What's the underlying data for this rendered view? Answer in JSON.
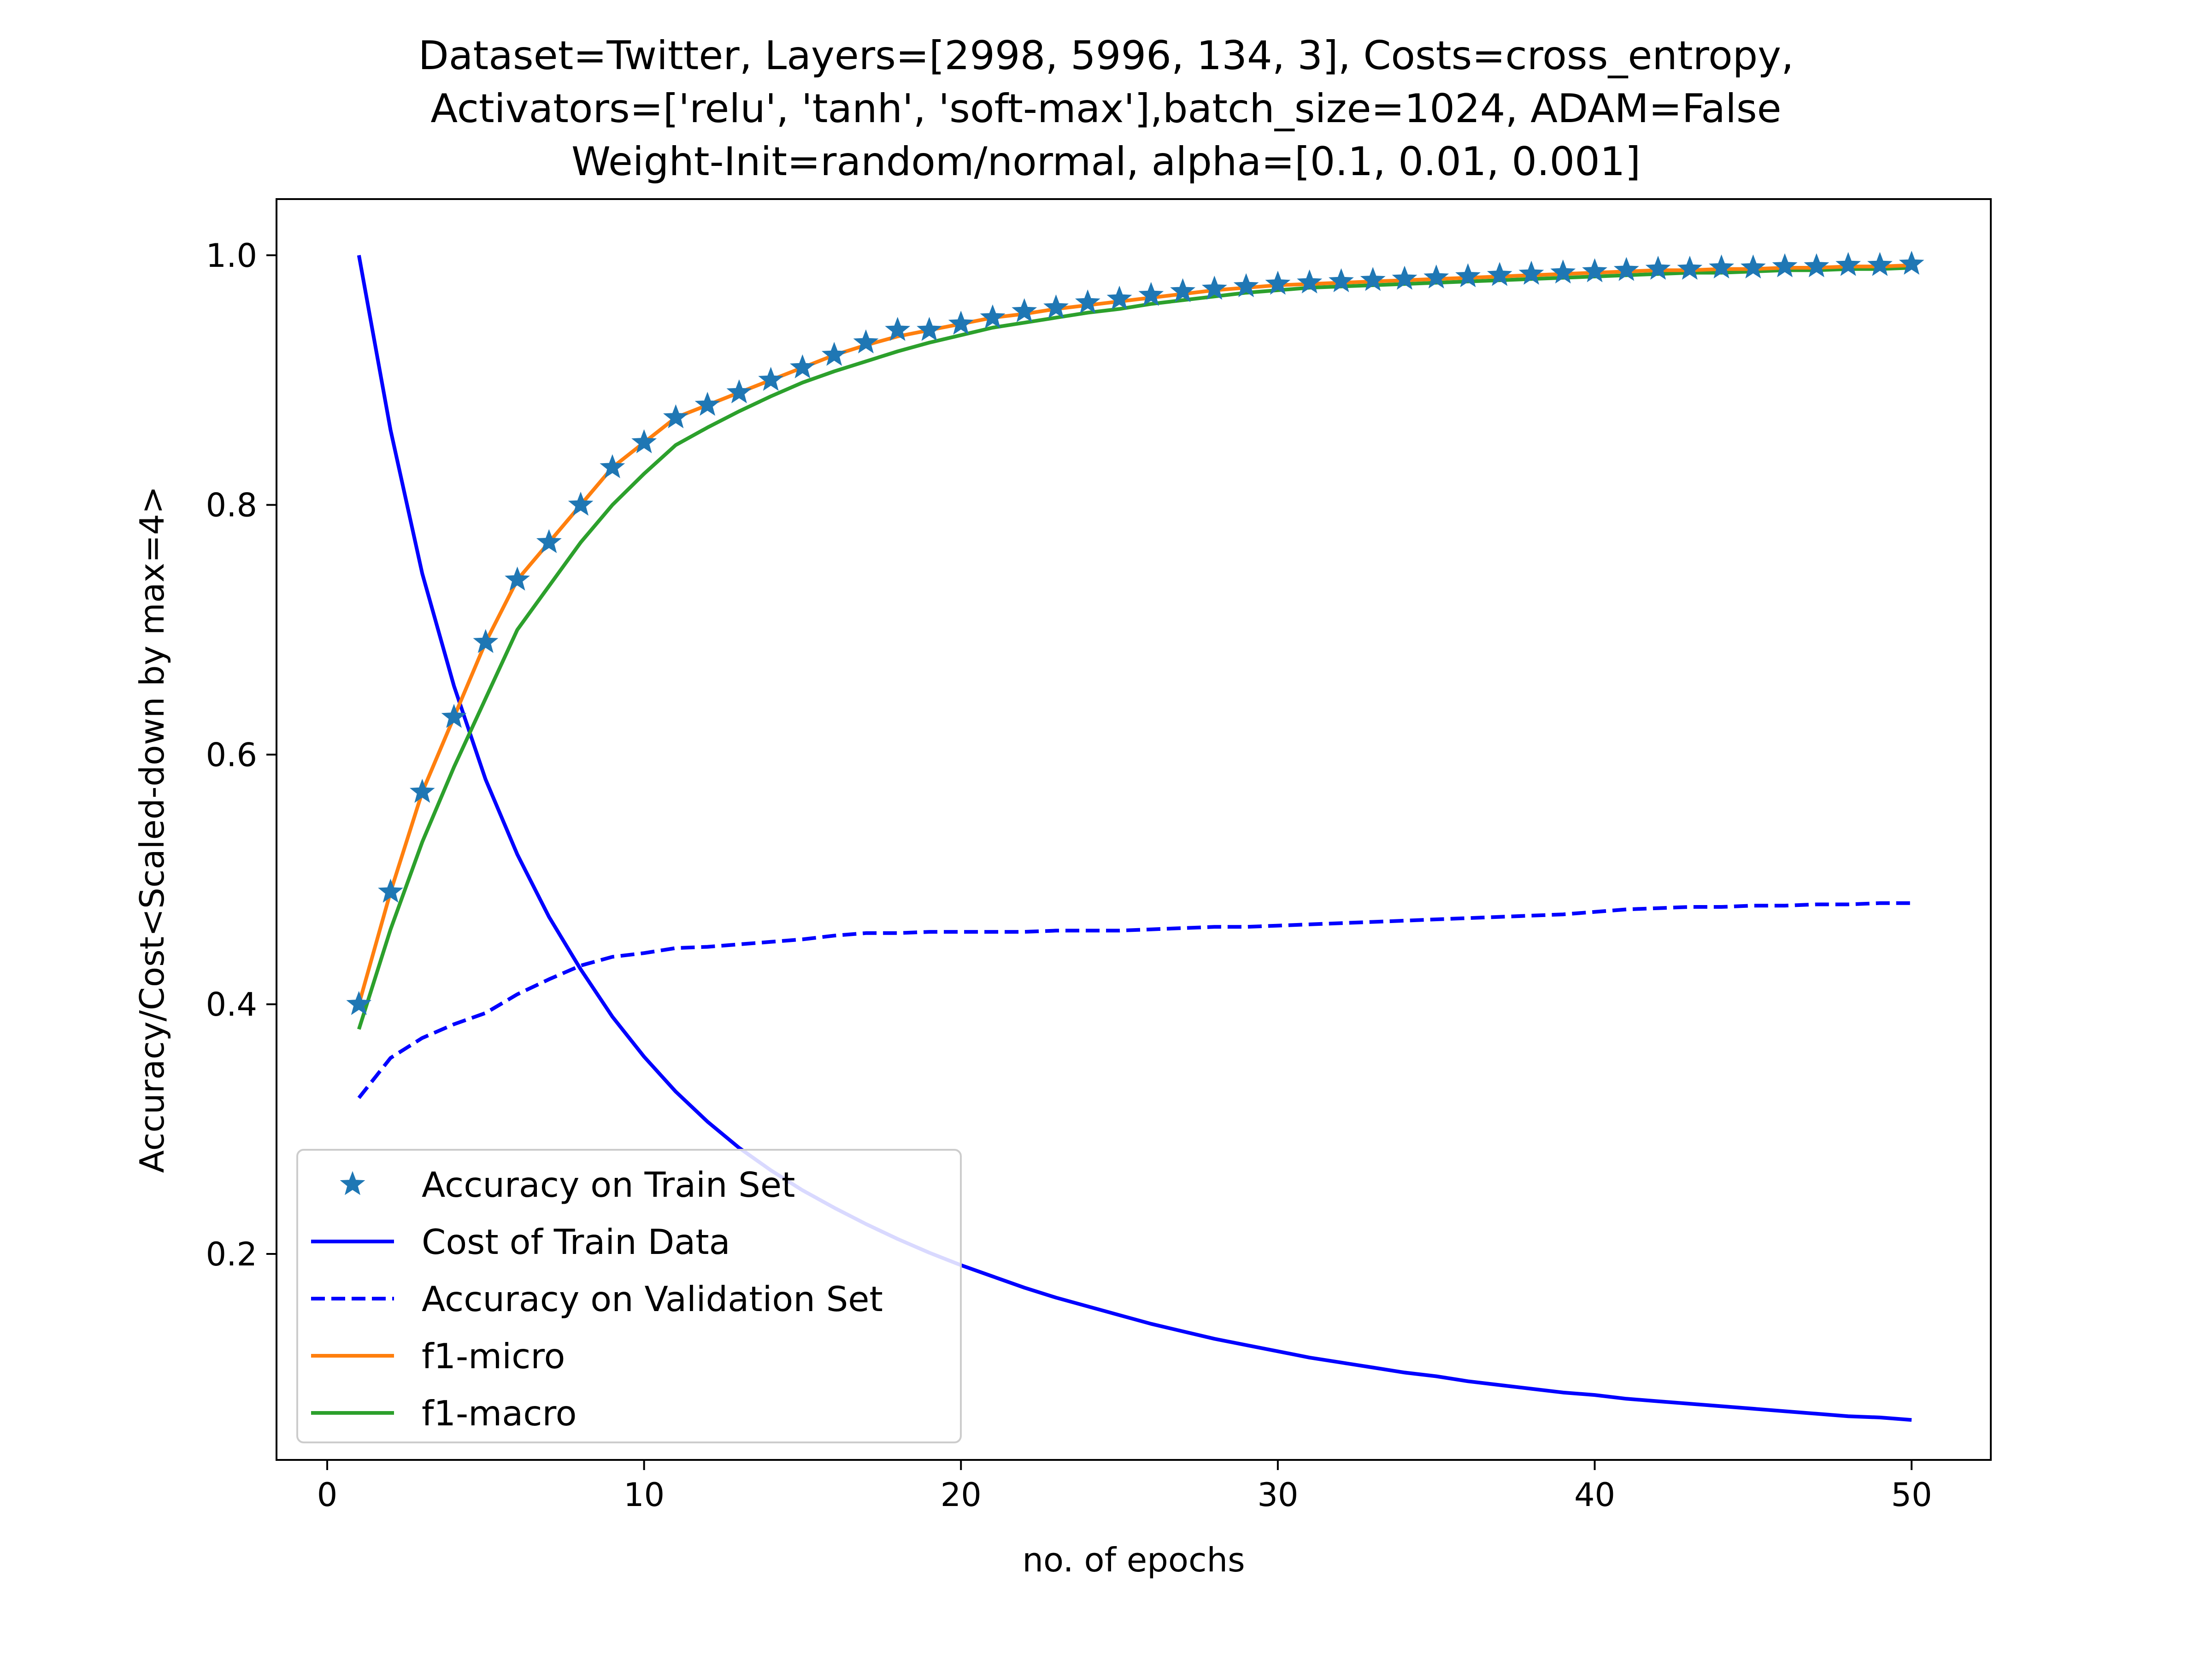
{
  "chart_data": {
    "type": "line",
    "title": [
      "Dataset=Twitter, Layers=[2998, 5996, 134, 3], Costs=cross_entropy,",
      "Activators=['relu', 'tanh', 'soft-max'],batch_size=1024, ADAM=False",
      "Weight-Init=random/normal, alpha=[0.1, 0.01, 0.001]"
    ],
    "xlabel": "no. of epochs",
    "ylabel": "Accuracy/Cost<Scaled-down by max=4>",
    "xlim": [
      -1.6,
      52.5
    ],
    "ylim": [
      0.035,
      1.045
    ],
    "xticks": [
      0,
      10,
      20,
      30,
      40,
      50
    ],
    "xtick_labels": [
      "0",
      "10",
      "20",
      "30",
      "40",
      "50"
    ],
    "yticks": [
      0.2,
      0.4,
      0.6,
      0.8,
      1.0
    ],
    "ytick_labels": [
      "0.2",
      "0.4",
      "0.6",
      "0.8",
      "1.0"
    ],
    "grid": false,
    "legend_position": "lower-left",
    "x": [
      1,
      2,
      3,
      4,
      5,
      6,
      7,
      8,
      9,
      10,
      11,
      12,
      13,
      14,
      15,
      16,
      17,
      18,
      19,
      20,
      21,
      22,
      23,
      24,
      25,
      26,
      27,
      28,
      29,
      30,
      31,
      32,
      33,
      34,
      35,
      36,
      37,
      38,
      39,
      40,
      41,
      42,
      43,
      44,
      45,
      46,
      47,
      48,
      49,
      50
    ],
    "series": [
      {
        "name": "Accuracy on Train Set",
        "style": "star-marker",
        "color": "#1f77b4",
        "values": [
          0.4,
          0.49,
          0.57,
          0.63,
          0.69,
          0.74,
          0.77,
          0.8,
          0.83,
          0.85,
          0.87,
          0.88,
          0.89,
          0.9,
          0.91,
          0.92,
          0.93,
          0.94,
          0.94,
          0.945,
          0.95,
          0.955,
          0.958,
          0.962,
          0.965,
          0.968,
          0.971,
          0.973,
          0.975,
          0.977,
          0.978,
          0.979,
          0.98,
          0.981,
          0.982,
          0.983,
          0.984,
          0.985,
          0.986,
          0.987,
          0.988,
          0.989,
          0.989,
          0.99,
          0.99,
          0.991,
          0.991,
          0.992,
          0.992,
          0.993
        ]
      },
      {
        "name": "Cost of Train Data",
        "style": "solid",
        "color": "#0000ff",
        "values": [
          1.0,
          0.86,
          0.745,
          0.655,
          0.58,
          0.52,
          0.47,
          0.428,
          0.39,
          0.358,
          0.33,
          0.306,
          0.285,
          0.267,
          0.251,
          0.237,
          0.224,
          0.212,
          0.201,
          0.191,
          0.182,
          0.173,
          0.165,
          0.158,
          0.151,
          0.144,
          0.138,
          0.132,
          0.127,
          0.122,
          0.117,
          0.113,
          0.109,
          0.105,
          0.102,
          0.098,
          0.095,
          0.092,
          0.089,
          0.087,
          0.084,
          0.082,
          0.08,
          0.078,
          0.076,
          0.074,
          0.072,
          0.07,
          0.069,
          0.067
        ]
      },
      {
        "name": "Accuracy on Validation Set",
        "style": "dashed",
        "color": "#0000ff",
        "values": [
          0.325,
          0.357,
          0.373,
          0.384,
          0.393,
          0.408,
          0.42,
          0.431,
          0.438,
          0.441,
          0.445,
          0.446,
          0.448,
          0.45,
          0.452,
          0.455,
          0.457,
          0.457,
          0.458,
          0.458,
          0.458,
          0.458,
          0.459,
          0.459,
          0.459,
          0.46,
          0.461,
          0.462,
          0.462,
          0.463,
          0.464,
          0.465,
          0.466,
          0.467,
          0.468,
          0.469,
          0.47,
          0.471,
          0.472,
          0.474,
          0.476,
          0.477,
          0.478,
          0.478,
          0.479,
          0.479,
          0.48,
          0.48,
          0.481,
          0.481
        ]
      },
      {
        "name": "f1-micro",
        "style": "solid",
        "color": "#ff7f0e",
        "values": [
          0.4,
          0.49,
          0.57,
          0.63,
          0.69,
          0.74,
          0.77,
          0.8,
          0.83,
          0.85,
          0.87,
          0.88,
          0.89,
          0.9,
          0.91,
          0.92,
          0.928,
          0.935,
          0.94,
          0.945,
          0.95,
          0.953,
          0.957,
          0.96,
          0.963,
          0.966,
          0.969,
          0.972,
          0.974,
          0.976,
          0.977,
          0.978,
          0.979,
          0.98,
          0.981,
          0.982,
          0.983,
          0.984,
          0.985,
          0.986,
          0.987,
          0.988,
          0.988,
          0.989,
          0.989,
          0.99,
          0.99,
          0.991,
          0.991,
          0.992
        ]
      },
      {
        "name": "f1-macro",
        "style": "solid",
        "color": "#2ca02c",
        "values": [
          0.38,
          0.46,
          0.53,
          0.59,
          0.645,
          0.7,
          0.735,
          0.77,
          0.8,
          0.825,
          0.848,
          0.862,
          0.875,
          0.887,
          0.898,
          0.907,
          0.915,
          0.923,
          0.93,
          0.936,
          0.942,
          0.946,
          0.95,
          0.954,
          0.957,
          0.961,
          0.964,
          0.967,
          0.97,
          0.972,
          0.974,
          0.975,
          0.976,
          0.977,
          0.978,
          0.979,
          0.98,
          0.981,
          0.982,
          0.983,
          0.984,
          0.985,
          0.986,
          0.986,
          0.987,
          0.988,
          0.988,
          0.989,
          0.989,
          0.99
        ]
      }
    ]
  }
}
